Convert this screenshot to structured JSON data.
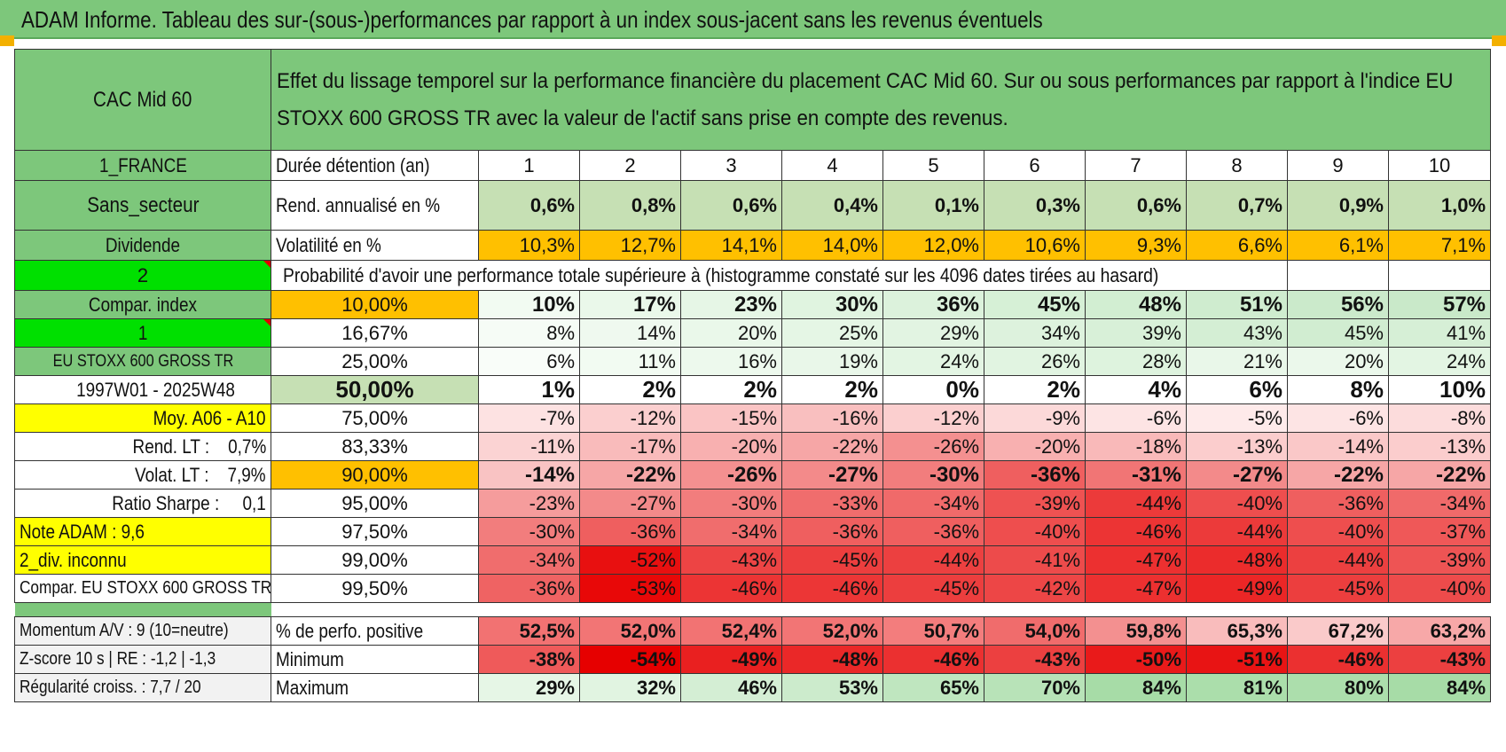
{
  "title": "ADAM Informe. Tableau des sur-(sous-)performances par rapport à un index sous-jacent sans les revenus éventuels",
  "header": {
    "fund_name": "CAC Mid 60",
    "description": "Effet du lissage temporel sur la performance financière du placement CAC Mid 60. Sur ou sous performances par rapport à l'indice EU STOXX 600 GROSS TR avec la valeur de l'actif sans prise en compte des revenus."
  },
  "left_labels": {
    "country": "1_FRANCE",
    "sector": "Sans_secteur",
    "dividend": "Dividende",
    "input_2": "2",
    "compar_index": "Compar. index",
    "input_1": "1",
    "index_name": "EU STOXX 600 GROSS TR",
    "period": "1997W01 - 2025W48",
    "moy": "Moy. A06 - A10",
    "rend_lt": "Rend. LT :    0,7%",
    "volat_lt": "Volat. LT :    7,9%",
    "sharpe": "Ratio Sharpe :     0,1",
    "note": "Note ADAM : 9,6",
    "div": "2_div. inconnu",
    "compar_full": "Compar. EU STOXX 600 GROSS TR"
  },
  "rows": {
    "duree_label": "Durée détention (an)",
    "years": [
      "1",
      "2",
      "3",
      "4",
      "5",
      "6",
      "7",
      "8",
      "9",
      "10"
    ],
    "rend_label": "Rend. annualisé en %",
    "rend": [
      "0,6%",
      "0,8%",
      "0,6%",
      "0,4%",
      "0,1%",
      "0,3%",
      "0,6%",
      "0,7%",
      "0,9%",
      "1,0%"
    ],
    "vol_label": "Volatilité en %",
    "vol": [
      "10,3%",
      "12,7%",
      "14,1%",
      "14,0%",
      "12,0%",
      "10,6%",
      "9,3%",
      "6,6%",
      "6,1%",
      "7,1%"
    ],
    "prob_label": "Probabilité d'avoir une performance totale supérieure à (histogramme constaté sur les 4096 dates tirées au hasard)"
  },
  "percentiles": [
    {
      "p": "10,00%",
      "vals": [
        "10%",
        "17%",
        "23%",
        "30%",
        "36%",
        "45%",
        "48%",
        "51%",
        "56%",
        "57%"
      ]
    },
    {
      "p": "16,67%",
      "vals": [
        "8%",
        "14%",
        "20%",
        "25%",
        "29%",
        "34%",
        "39%",
        "43%",
        "45%",
        "41%"
      ]
    },
    {
      "p": "25,00%",
      "vals": [
        "6%",
        "11%",
        "16%",
        "19%",
        "24%",
        "26%",
        "28%",
        "21%",
        "20%",
        "24%"
      ]
    },
    {
      "p": "50,00%",
      "vals": [
        "1%",
        "2%",
        "2%",
        "2%",
        "0%",
        "2%",
        "4%",
        "6%",
        "8%",
        "10%"
      ]
    },
    {
      "p": "75,00%",
      "vals": [
        "-7%",
        "-12%",
        "-15%",
        "-16%",
        "-12%",
        "-9%",
        "-6%",
        "-5%",
        "-6%",
        "-8%"
      ]
    },
    {
      "p": "83,33%",
      "vals": [
        "-11%",
        "-17%",
        "-20%",
        "-22%",
        "-26%",
        "-20%",
        "-18%",
        "-13%",
        "-14%",
        "-13%"
      ]
    },
    {
      "p": "90,00%",
      "vals": [
        "-14%",
        "-22%",
        "-26%",
        "-27%",
        "-30%",
        "-36%",
        "-31%",
        "-27%",
        "-22%",
        "-22%"
      ]
    },
    {
      "p": "95,00%",
      "vals": [
        "-23%",
        "-27%",
        "-30%",
        "-33%",
        "-34%",
        "-39%",
        "-44%",
        "-40%",
        "-36%",
        "-34%"
      ]
    },
    {
      "p": "97,50%",
      "vals": [
        "-30%",
        "-36%",
        "-34%",
        "-36%",
        "-36%",
        "-40%",
        "-46%",
        "-44%",
        "-40%",
        "-37%"
      ]
    },
    {
      "p": "99,00%",
      "vals": [
        "-34%",
        "-52%",
        "-43%",
        "-45%",
        "-44%",
        "-41%",
        "-47%",
        "-48%",
        "-44%",
        "-39%"
      ]
    },
    {
      "p": "99,50%",
      "vals": [
        "-36%",
        "-53%",
        "-46%",
        "-46%",
        "-45%",
        "-42%",
        "-47%",
        "-49%",
        "-45%",
        "-40%"
      ]
    }
  ],
  "percentile_colors": [
    [
      "#f2fbf2",
      "#eaf8ea",
      "#e6f6e6",
      "#e0f4e0",
      "#dcf2dc",
      "#d6f0d6",
      "#d2eed2",
      "#cfeccf",
      "#cbeacb",
      "#c9e9c9"
    ],
    [
      "#f6fcf6",
      "#eff9ef",
      "#eaf8ea",
      "#e5f6e5",
      "#e2f4e2",
      "#ddf2dd",
      "#d8f0d8",
      "#d4eed4",
      "#d1edd1",
      "#d6efd6"
    ],
    [
      "#f9fdf9",
      "#f2fbf2",
      "#edf9ed",
      "#e9f7e9",
      "#e3f5e3",
      "#e1f4e1",
      "#def3de",
      "#e9f7e9",
      "#ebf8eb",
      "#e3f5e3"
    ],
    [
      "#ffffff",
      "#ffffff",
      "#ffffff",
      "#ffffff",
      "#ffffff",
      "#ffffff",
      "#ffffff",
      "#ffffff",
      "#ffffff",
      "#ffffff"
    ],
    [
      "#fde2e2",
      "#fbcfcf",
      "#fac4c4",
      "#f9bfbf",
      "#fbcfcf",
      "#fcd9d9",
      "#fde4e4",
      "#feeaea",
      "#fde4e4",
      "#fcdcdc"
    ],
    [
      "#fbd3d3",
      "#f9bbbb",
      "#f8b0b0",
      "#f6a6a6",
      "#f49090",
      "#f8b0b0",
      "#f9b9b9",
      "#fbcdcd",
      "#fac8c8",
      "#fbcdcd"
    ],
    [
      "#f9c3c3",
      "#f6a6a6",
      "#f49090",
      "#f38a8a",
      "#f27d7d",
      "#ef5f5f",
      "#f17575",
      "#f38a8a",
      "#f6a6a6",
      "#f6a6a6"
    ],
    [
      "#f59c9c",
      "#f38a8a",
      "#f27d7d",
      "#f06d6d",
      "#f06a6a",
      "#ee5252",
      "#ec3a3a",
      "#ee4e4e",
      "#ef5f5f",
      "#f06a6a"
    ],
    [
      "#f27d7d",
      "#ef5f5f",
      "#f06d6d",
      "#ef5f5f",
      "#ef5f5f",
      "#ee4e4e",
      "#ec3434",
      "#ec3a3a",
      "#ee4e4e",
      "#ef5858"
    ],
    [
      "#f06d6d",
      "#e81010",
      "#ed4444",
      "#ec3e3e",
      "#ec4040",
      "#ed4b4b",
      "#ec3030",
      "#eb2c2c",
      "#ec4040",
      "#ee5454"
    ],
    [
      "#ef6363",
      "#e80808",
      "#ec3434",
      "#ec3636",
      "#ec3e3e",
      "#ed4646",
      "#ec3030",
      "#eb2626",
      "#ec3e3e",
      "#ed4b4b"
    ]
  ],
  "bottom": {
    "momentum": "Momentum A/V : 9 (10=neutre)",
    "zscore": "Z-score 10 s | RE : -1,2 | -1,3",
    "regularite": "Régularité croiss. : 7,7 / 20",
    "pos_label": "% de perfo. positive",
    "pos": [
      "52,5%",
      "52,0%",
      "52,4%",
      "52,0%",
      "50,7%",
      "54,0%",
      "59,8%",
      "65,3%",
      "67,2%",
      "63,2%"
    ],
    "pos_colors": [
      "#f27272",
      "#f27575",
      "#f27373",
      "#f27575",
      "#f37d7d",
      "#f06c6c",
      "#f39090",
      "#f9bcbc",
      "#facaca",
      "#f7a8a8"
    ],
    "min_label": "Minimum",
    "min": [
      "-38%",
      "-54%",
      "-49%",
      "-48%",
      "-46%",
      "-43%",
      "-50%",
      "-51%",
      "-46%",
      "-43%"
    ],
    "min_colors": [
      "#ef5a5a",
      "#e60000",
      "#e92020",
      "#ea2828",
      "#eb3030",
      "#ec4040",
      "#e91a1a",
      "#e81414",
      "#eb3030",
      "#ec4040"
    ],
    "max_label": "Maximum",
    "max": [
      "29%",
      "32%",
      "46%",
      "53%",
      "65%",
      "70%",
      "84%",
      "81%",
      "80%",
      "84%"
    ],
    "max_colors": [
      "#e6f6e6",
      "#e1f4e1",
      "#d4eed4",
      "#ccebcc",
      "#bfe6bf",
      "#b8e3b8",
      "#a7dca7",
      "#abdeab",
      "#acdeac",
      "#a7dca7"
    ]
  },
  "colors": {
    "green_header": "#7dc77b",
    "light_green": "#c6e0b4",
    "orange": "#ffc000",
    "bright_green": "#00e000",
    "yellow": "#ffff00",
    "red_text": "#e00000"
  }
}
